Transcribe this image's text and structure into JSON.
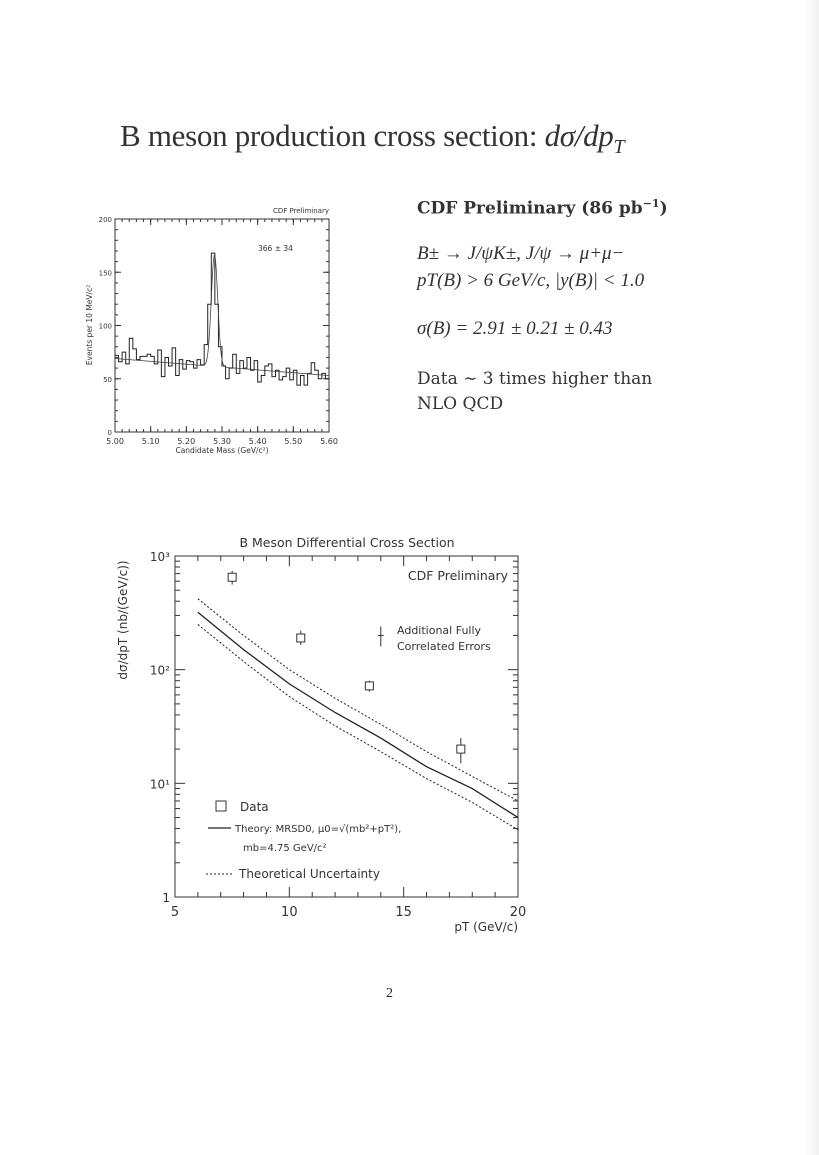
{
  "title": {
    "text": "B meson production cross section: ",
    "math": "dσ/dp",
    "math_sub": "T"
  },
  "right_panel": {
    "heading": "CDF Preliminary (86 pb",
    "heading_sup": "−1",
    "heading_end": ")",
    "decay_line": "B± → J/ψK±,  J/ψ → μ+μ−",
    "cuts_line": "pT(B) > 6 GeV/c, |y(B)| < 1.0",
    "sigma_line": "σ(B) = 2.91 ± 0.21 ± 0.43",
    "conclusion_line1": "Data  ∼  3  times  higher  than",
    "conclusion_line2": "NLO QCD"
  },
  "page_number": "2",
  "chart_data": [
    {
      "type": "bar",
      "subtype": "histogram",
      "title": "CDF Preliminary",
      "annotation": "366 ± 34",
      "xlabel": "Candidate Mass (GeV/c²)",
      "ylabel": "Events per 10 MeV/c²",
      "xlim": [
        5.0,
        5.6
      ],
      "ylim": [
        0,
        200
      ],
      "xticks": [
        "5.00",
        "5.10",
        "5.20",
        "5.30",
        "5.40",
        "5.50",
        "5.60"
      ],
      "yticks": [
        "0",
        "50",
        "100",
        "150",
        "200"
      ],
      "bin_width": 0.01,
      "values": [
        72,
        66,
        75,
        64,
        88,
        78,
        68,
        71,
        71,
        73,
        71,
        64,
        77,
        52,
        70,
        62,
        79,
        53,
        68,
        59,
        67,
        66,
        60,
        68,
        63,
        82,
        120,
        168,
        120,
        80,
        62,
        50,
        60,
        73,
        55,
        67,
        60,
        70,
        58,
        67,
        47,
        53,
        62,
        64,
        52,
        58,
        49,
        52,
        60,
        49,
        58,
        44,
        53,
        44,
        55,
        65,
        58,
        50,
        55,
        50
      ],
      "fit": {
        "background_at_5.00": 69,
        "background_at_5.60": 53,
        "peak_mass": 5.279,
        "peak_height": 105,
        "sigma": 0.009
      }
    },
    {
      "type": "scatter",
      "title": "B Meson Differential Cross Section",
      "annotation": "CDF Preliminary",
      "xlabel": "pT (GeV/c)",
      "ylabel": "dσ/dpT (nb/(GeV/c))",
      "xlim": [
        5,
        20
      ],
      "ylim": [
        1,
        1000
      ],
      "yscale": "log",
      "xticks": [
        "5",
        "10",
        "15",
        "20"
      ],
      "yticks": [
        "1",
        "10¹",
        "10²",
        "10³"
      ],
      "series": [
        {
          "name": "Data",
          "x": [
            7.5,
            10.5,
            13.5,
            17.5
          ],
          "y": [
            650,
            190,
            72,
            20
          ],
          "err_low": [
            560,
            165,
            64,
            15
          ],
          "err_high": [
            740,
            220,
            80,
            25
          ]
        },
        {
          "name": "Theory",
          "x": [
            6,
            8,
            10,
            12,
            14,
            16,
            18,
            20
          ],
          "y": [
            320,
            150,
            75,
            42,
            25,
            14,
            9,
            5
          ]
        },
        {
          "name": "Theoretical Uncertainty (upper)",
          "x": [
            6,
            8,
            10,
            12,
            14,
            16,
            18,
            20
          ],
          "y": [
            420,
            200,
            100,
            56,
            33,
            19,
            11.5,
            7
          ]
        },
        {
          "name": "Theoretical Uncertainty (lower)",
          "x": [
            6,
            8,
            10,
            12,
            14,
            16,
            18,
            20
          ],
          "y": [
            250,
            118,
            58,
            32,
            19,
            11,
            6.8,
            3.9
          ]
        }
      ],
      "correlated_error_note": "Additional Fully Correlated Errors",
      "legend": {
        "position": "bottom-left",
        "data": "Data",
        "theory": "Theory: MRSD0, μ0=√(mb²+pT²),",
        "theory2": "mb=4.75 GeV/c²",
        "uncertainty": "Theoretical Uncertainty"
      }
    }
  ]
}
